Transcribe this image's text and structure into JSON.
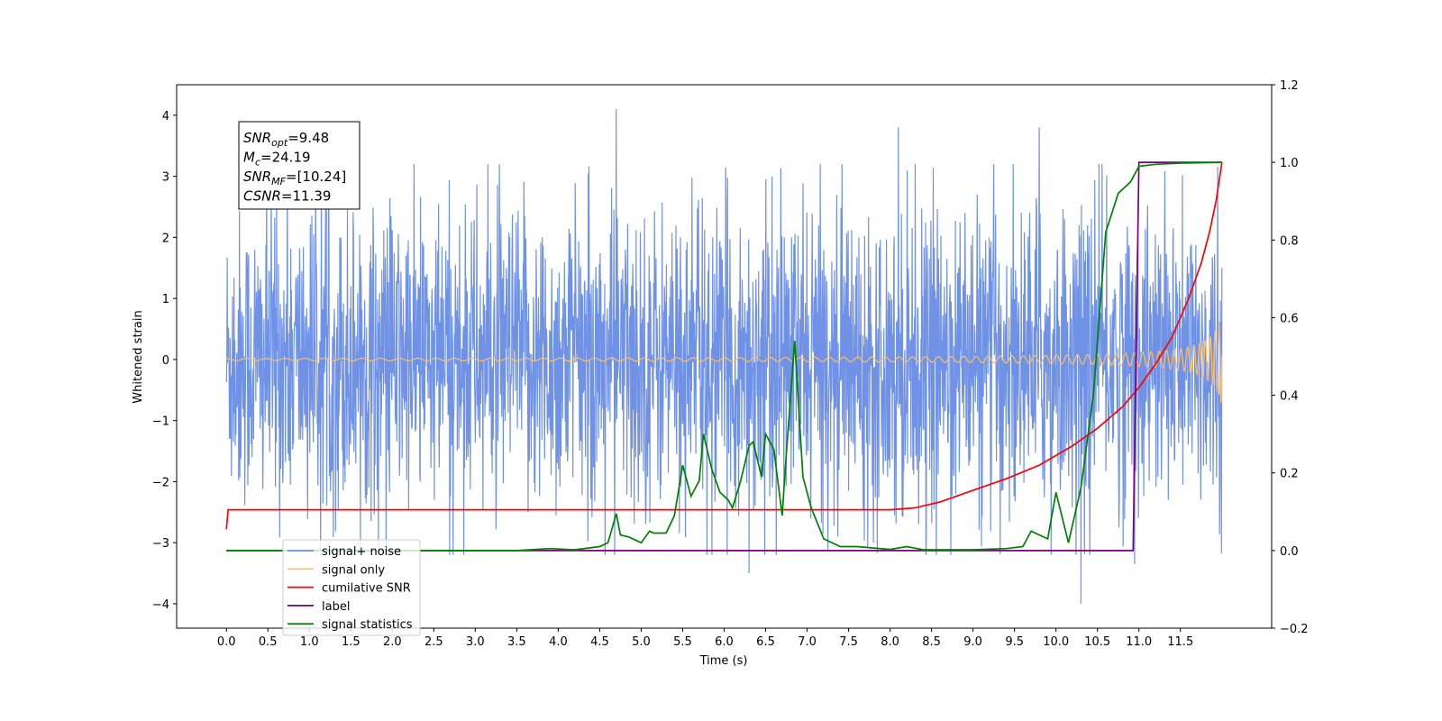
{
  "chart_data": {
    "type": "line",
    "xlabel": "Time (s)",
    "ylabel": "Whitened strain",
    "xlim": [
      -0.6,
      12.6
    ],
    "ylim": [
      -4.4,
      4.5
    ],
    "y2lim": [
      -0.2,
      1.2
    ],
    "grid": false,
    "legend_placement": "lower-left",
    "x_ticks": [
      "0.0",
      "0.5",
      "1.0",
      "1.5",
      "2.0",
      "2.5",
      "3.0",
      "3.5",
      "4.0",
      "4.5",
      "5.0",
      "5.5",
      "6.0",
      "6.5",
      "7.0",
      "7.5",
      "8.0",
      "8.5",
      "9.0",
      "9.5",
      "10.0",
      "10.5",
      "11.0",
      "11.5"
    ],
    "x_tick_values": [
      0,
      0.5,
      1,
      1.5,
      2,
      2.5,
      3,
      3.5,
      4,
      4.5,
      5,
      5.5,
      6,
      6.5,
      7,
      7.5,
      8,
      8.5,
      9,
      9.5,
      10,
      10.5,
      11,
      11.5
    ],
    "y_ticks": [
      "−4",
      "−3",
      "−2",
      "−1",
      "0",
      "1",
      "2",
      "3",
      "4"
    ],
    "y_tick_values": [
      -4,
      -3,
      -2,
      -1,
      0,
      1,
      2,
      3,
      4
    ],
    "y2_ticks": [
      "−0.2",
      "0.0",
      "0.2",
      "0.4",
      "0.6",
      "0.8",
      "1.0",
      "1.2"
    ],
    "y2_tick_values": [
      -0.2,
      0,
      0.2,
      0.4,
      0.6,
      0.8,
      1.0,
      1.2
    ],
    "stats_box": [
      {
        "base": "SNR",
        "sub": "opt",
        "value": "=9.48"
      },
      {
        "base": "M",
        "sub": "c",
        "value": "=24.19"
      },
      {
        "base": "SNR",
        "sub": "MF",
        "value": "=[10.24]"
      },
      {
        "base": "CSNR",
        "sub": "",
        "value": "=11.39"
      }
    ],
    "series": [
      {
        "name": "signal+ noise",
        "color": "#7092e6",
        "axis": "left",
        "kind": "noise",
        "x_range": [
          0,
          12.0
        ],
        "amplitude_envelope": 1.2,
        "extreme_spikes": [
          [
            4.7,
            4.1
          ],
          [
            8.1,
            3.8
          ],
          [
            9.8,
            3.8
          ],
          [
            10.3,
            -4.0
          ],
          [
            6.3,
            -3.5
          ],
          [
            10.95,
            -3.35
          ]
        ]
      },
      {
        "name": "signal only",
        "color": "#ffbf60",
        "axis": "left",
        "kind": "chirp",
        "x_range": [
          0,
          12.0
        ],
        "amplitude_at_end": 0.8
      },
      {
        "name": "cumilative SNR",
        "color": "#ff0000",
        "axis": "right",
        "x": [
          0.0,
          0.02,
          0.5,
          8.0,
          8.3,
          8.6,
          9.0,
          9.4,
          9.8,
          10.2,
          10.5,
          10.8,
          11.0,
          11.2,
          11.4,
          11.6,
          11.75,
          11.85,
          11.93,
          12.0
        ],
        "values": [
          0.055,
          0.105,
          0.105,
          0.105,
          0.11,
          0.125,
          0.155,
          0.185,
          0.22,
          0.27,
          0.315,
          0.37,
          0.42,
          0.48,
          0.55,
          0.65,
          0.74,
          0.82,
          0.9,
          1.0
        ]
      },
      {
        "name": "label",
        "color": "#7b007b",
        "axis": "right",
        "x": [
          0.0,
          10.93,
          11.0,
          12.0
        ],
        "values": [
          0.0,
          0.0,
          1.0,
          1.0
        ]
      },
      {
        "name": "signal statistics",
        "color": "#008000",
        "axis": "right",
        "x": [
          0.0,
          3.5,
          3.9,
          4.2,
          4.5,
          4.6,
          4.7,
          4.75,
          4.85,
          5.0,
          5.1,
          5.15,
          5.3,
          5.4,
          5.5,
          5.6,
          5.7,
          5.75,
          5.85,
          5.95,
          6.05,
          6.1,
          6.2,
          6.3,
          6.35,
          6.45,
          6.5,
          6.6,
          6.7,
          6.75,
          6.85,
          6.95,
          7.05,
          7.2,
          7.4,
          7.6,
          8.0,
          8.2,
          8.4,
          9.0,
          9.4,
          9.6,
          9.7,
          9.8,
          9.9,
          10.0,
          10.15,
          10.3,
          10.45,
          10.6,
          10.75,
          10.9,
          11.0,
          11.2,
          11.5,
          12.0
        ],
        "values": [
          0.0,
          0.0,
          0.005,
          0.002,
          0.01,
          0.02,
          0.095,
          0.04,
          0.035,
          0.02,
          0.05,
          0.045,
          0.045,
          0.09,
          0.22,
          0.14,
          0.18,
          0.3,
          0.21,
          0.15,
          0.13,
          0.11,
          0.18,
          0.27,
          0.28,
          0.19,
          0.3,
          0.26,
          0.09,
          0.25,
          0.54,
          0.19,
          0.11,
          0.03,
          0.01,
          0.01,
          0.003,
          0.01,
          0.002,
          0.002,
          0.005,
          0.01,
          0.05,
          0.04,
          0.03,
          0.15,
          0.02,
          0.16,
          0.4,
          0.82,
          0.92,
          0.95,
          0.99,
          0.995,
          0.998,
          1.0
        ]
      }
    ]
  }
}
